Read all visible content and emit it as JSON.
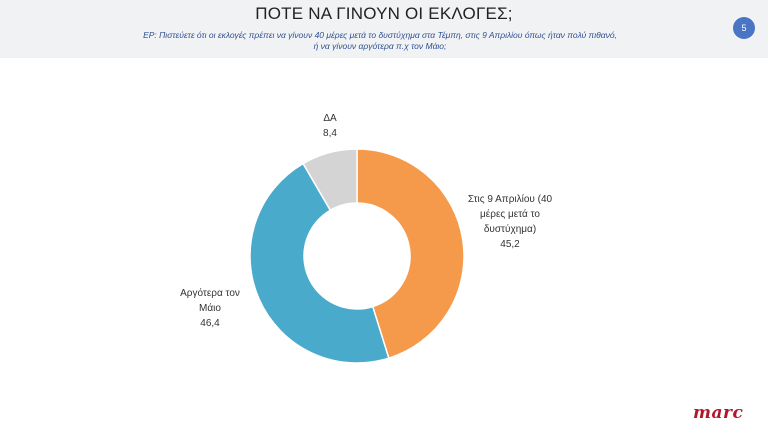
{
  "header": {
    "title": "ΠΟΤΕ ΝΑ ΓΙΝΟΥΝ ΟΙ ΕΚΛΟΓΕΣ;",
    "question_line1": "ΕΡ: Πιστεύετε ότι οι εκλογές πρέπει να γίνουν 40 μέρες μετά το δυστύχημα στα Τέμπη, στις 9 Απριλίου όπως ήταν πολύ πιθανό,",
    "question_line2": "ή να γίνουν αργότερα π.χ τον Μάιο;",
    "page_number": "5"
  },
  "chart_data": {
    "type": "pie",
    "donut": true,
    "title": "ΠΟΤΕ ΝΑ ΓΙΝΟΥΝ ΟΙ ΕΚΛΟΓΕΣ;",
    "slices": [
      {
        "label_lines": [
          "Στις 9 Απριλίου (40",
          "μέρες μετά το",
          "δυστύχημα)"
        ],
        "value": 45.2,
        "value_text": "45,2",
        "color": "#f5994a"
      },
      {
        "label_lines": [
          "Αργότερα τον",
          "Μάιο"
        ],
        "value": 46.4,
        "value_text": "46,4",
        "color": "#4aaacb"
      },
      {
        "label_lines": [
          "ΔΑ"
        ],
        "value": 8.4,
        "value_text": "8,4",
        "color": "#d4d4d4"
      }
    ]
  },
  "logo": {
    "text": "marc",
    "color": "#b0182a"
  }
}
